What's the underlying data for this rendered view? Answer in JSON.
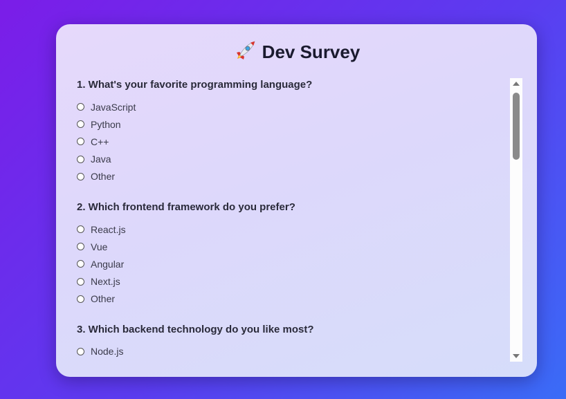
{
  "survey": {
    "title": "Dev Survey",
    "title_icon": "rocket-icon",
    "questions": [
      {
        "text": "1. What's your favorite programming language?",
        "options": [
          "JavaScript",
          "Python",
          "C++",
          "Java",
          "Other"
        ]
      },
      {
        "text": "2. Which frontend framework do you prefer?",
        "options": [
          "React.js",
          "Vue",
          "Angular",
          "Next.js",
          "Other"
        ]
      },
      {
        "text": "3. Which backend technology do you like most?",
        "options": [
          "Node.js"
        ]
      }
    ]
  },
  "colors": {
    "background_start": "#7b1de8",
    "background_end": "#3a6cf7",
    "card": "#e2dafb",
    "text": "#1a1a2e"
  }
}
